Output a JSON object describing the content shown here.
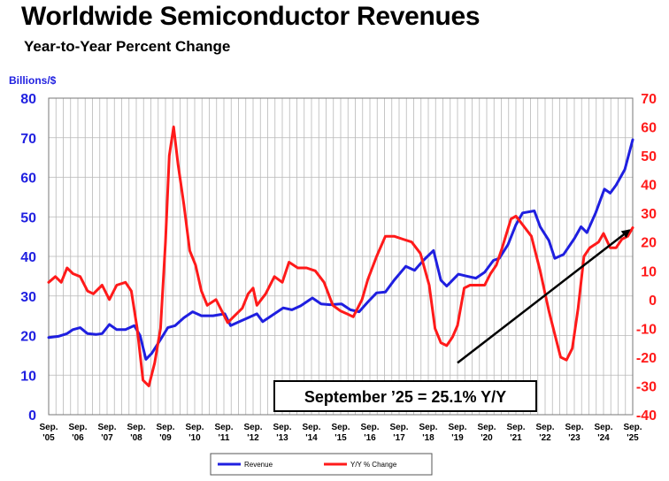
{
  "chart_data": {
    "type": "line",
    "title": "Worldwide Semiconductor Revenues",
    "subtitle": "Year-to-Year Percent Change",
    "ylabel_left": "Billions/$",
    "ylim_left": [
      0,
      80
    ],
    "yticks_left": [
      "0",
      "10",
      "20",
      "30",
      "40",
      "50",
      "60",
      "70",
      "80"
    ],
    "ylim_right": [
      -40,
      70
    ],
    "yticks_right": [
      "-40",
      "-30",
      "-20",
      "-10",
      "0",
      "10",
      "20",
      "30",
      "40",
      "50",
      "60",
      "70"
    ],
    "x_range": [
      2005.67,
      2025.67
    ],
    "x_ticks": [
      {
        "x": 2005.67,
        "top": "Sep.",
        "bottom": "'05"
      },
      {
        "x": 2006.67,
        "top": "Sep.",
        "bottom": "'06"
      },
      {
        "x": 2007.67,
        "top": "Sep.",
        "bottom": "'07"
      },
      {
        "x": 2008.67,
        "top": "Sep.",
        "bottom": "'08"
      },
      {
        "x": 2009.67,
        "top": "Sep.",
        "bottom": "'09"
      },
      {
        "x": 2010.67,
        "top": "Sep.",
        "bottom": "'10"
      },
      {
        "x": 2011.67,
        "top": "Sep.",
        "bottom": "'11"
      },
      {
        "x": 2012.67,
        "top": "Sep.",
        "bottom": "'12"
      },
      {
        "x": 2013.67,
        "top": "Sep.",
        "bottom": "'13"
      },
      {
        "x": 2014.67,
        "top": "Sep.",
        "bottom": "'14"
      },
      {
        "x": 2015.67,
        "top": "Sep.",
        "bottom": "'15"
      },
      {
        "x": 2016.67,
        "top": "Sep.",
        "bottom": "'16"
      },
      {
        "x": 2017.67,
        "top": "Sep.",
        "bottom": "'17"
      },
      {
        "x": 2018.67,
        "top": "Sep.",
        "bottom": "'18"
      },
      {
        "x": 2019.67,
        "top": "Sep.",
        "bottom": "'19"
      },
      {
        "x": 2020.67,
        "top": "Sep.",
        "bottom": "'20"
      },
      {
        "x": 2021.67,
        "top": "Sep.",
        "bottom": "'21"
      },
      {
        "x": 2022.67,
        "top": "Sep.",
        "bottom": "'22"
      },
      {
        "x": 2023.67,
        "top": "Sep.",
        "bottom": "'23"
      },
      {
        "x": 2024.67,
        "top": "Sep.",
        "bottom": "'24"
      },
      {
        "x": 2025.67,
        "top": "Sep.",
        "bottom": "'25"
      }
    ],
    "grid": true,
    "legend_position": "bottom-center",
    "series": [
      {
        "name": "Revenue",
        "axis": "left",
        "color": "#1f1fe0",
        "points": [
          [
            2005.67,
            19.5
          ],
          [
            2006.0,
            19.8
          ],
          [
            2006.3,
            20.5
          ],
          [
            2006.5,
            21.5
          ],
          [
            2006.75,
            22.0
          ],
          [
            2007.0,
            20.5
          ],
          [
            2007.3,
            20.3
          ],
          [
            2007.5,
            20.5
          ],
          [
            2007.75,
            22.8
          ],
          [
            2008.0,
            21.5
          ],
          [
            2008.3,
            21.5
          ],
          [
            2008.6,
            22.5
          ],
          [
            2008.8,
            20.0
          ],
          [
            2009.0,
            14.0
          ],
          [
            2009.2,
            15.5
          ],
          [
            2009.5,
            19.0
          ],
          [
            2009.75,
            22.0
          ],
          [
            2010.0,
            22.5
          ],
          [
            2010.3,
            24.5
          ],
          [
            2010.6,
            26.0
          ],
          [
            2010.9,
            25.0
          ],
          [
            2011.3,
            25.0
          ],
          [
            2011.7,
            25.5
          ],
          [
            2011.9,
            22.5
          ],
          [
            2012.2,
            23.5
          ],
          [
            2012.5,
            24.5
          ],
          [
            2012.8,
            25.5
          ],
          [
            2013.0,
            23.5
          ],
          [
            2013.3,
            25.0
          ],
          [
            2013.7,
            27.0
          ],
          [
            2014.0,
            26.5
          ],
          [
            2014.3,
            27.5
          ],
          [
            2014.7,
            29.5
          ],
          [
            2015.0,
            28.0
          ],
          [
            2015.3,
            27.8
          ],
          [
            2015.7,
            28.0
          ],
          [
            2016.0,
            26.5
          ],
          [
            2016.3,
            26.0
          ],
          [
            2016.6,
            28.5
          ],
          [
            2016.9,
            30.8
          ],
          [
            2017.2,
            31.0
          ],
          [
            2017.5,
            34.0
          ],
          [
            2017.9,
            37.5
          ],
          [
            2018.2,
            36.5
          ],
          [
            2018.5,
            39.0
          ],
          [
            2018.85,
            41.5
          ],
          [
            2019.1,
            34.0
          ],
          [
            2019.3,
            32.5
          ],
          [
            2019.7,
            35.5
          ],
          [
            2020.0,
            35.0
          ],
          [
            2020.3,
            34.5
          ],
          [
            2020.6,
            36.0
          ],
          [
            2020.9,
            39.0
          ],
          [
            2021.1,
            39.5
          ],
          [
            2021.4,
            43.0
          ],
          [
            2021.67,
            48.0
          ],
          [
            2021.9,
            51.0
          ],
          [
            2022.3,
            51.5
          ],
          [
            2022.5,
            47.5
          ],
          [
            2022.8,
            44.0
          ],
          [
            2023.0,
            39.5
          ],
          [
            2023.3,
            40.5
          ],
          [
            2023.67,
            44.5
          ],
          [
            2023.9,
            47.5
          ],
          [
            2024.1,
            46.0
          ],
          [
            2024.4,
            51.0
          ],
          [
            2024.7,
            57.0
          ],
          [
            2024.9,
            56.0
          ],
          [
            2025.1,
            58.0
          ],
          [
            2025.4,
            62.0
          ],
          [
            2025.67,
            69.5
          ]
        ]
      },
      {
        "name": "Y/Y % Change",
        "axis": "right",
        "color": "#ff1a1a",
        "points": [
          [
            2005.67,
            6
          ],
          [
            2005.9,
            8
          ],
          [
            2006.1,
            6
          ],
          [
            2006.3,
            11
          ],
          [
            2006.5,
            9
          ],
          [
            2006.75,
            8
          ],
          [
            2007.0,
            3
          ],
          [
            2007.2,
            2
          ],
          [
            2007.5,
            5
          ],
          [
            2007.75,
            0
          ],
          [
            2008.0,
            5
          ],
          [
            2008.3,
            6
          ],
          [
            2008.5,
            3
          ],
          [
            2008.7,
            -10
          ],
          [
            2008.9,
            -28
          ],
          [
            2009.1,
            -30
          ],
          [
            2009.3,
            -22
          ],
          [
            2009.5,
            -10
          ],
          [
            2009.67,
            20
          ],
          [
            2009.8,
            50
          ],
          [
            2009.95,
            60
          ],
          [
            2010.1,
            47
          ],
          [
            2010.3,
            33
          ],
          [
            2010.5,
            17
          ],
          [
            2010.7,
            12
          ],
          [
            2010.9,
            3
          ],
          [
            2011.1,
            -2
          ],
          [
            2011.4,
            0
          ],
          [
            2011.6,
            -4
          ],
          [
            2011.8,
            -8
          ],
          [
            2012.0,
            -6
          ],
          [
            2012.3,
            -3
          ],
          [
            2012.5,
            2
          ],
          [
            2012.67,
            4
          ],
          [
            2012.8,
            -2
          ],
          [
            2013.1,
            2
          ],
          [
            2013.4,
            8
          ],
          [
            2013.67,
            6
          ],
          [
            2013.9,
            13
          ],
          [
            2014.2,
            11
          ],
          [
            2014.5,
            11
          ],
          [
            2014.8,
            10
          ],
          [
            2015.1,
            6
          ],
          [
            2015.4,
            -2
          ],
          [
            2015.67,
            -4
          ],
          [
            2015.9,
            -5
          ],
          [
            2016.1,
            -6
          ],
          [
            2016.4,
            0
          ],
          [
            2016.6,
            7
          ],
          [
            2016.9,
            15
          ],
          [
            2017.2,
            22
          ],
          [
            2017.5,
            22
          ],
          [
            2017.8,
            21
          ],
          [
            2018.1,
            20
          ],
          [
            2018.4,
            16
          ],
          [
            2018.7,
            5
          ],
          [
            2018.9,
            -10
          ],
          [
            2019.1,
            -15
          ],
          [
            2019.3,
            -16
          ],
          [
            2019.5,
            -13
          ],
          [
            2019.67,
            -9
          ],
          [
            2019.9,
            4
          ],
          [
            2020.1,
            5
          ],
          [
            2020.3,
            5
          ],
          [
            2020.6,
            5
          ],
          [
            2020.8,
            9
          ],
          [
            2021.0,
            12
          ],
          [
            2021.2,
            18
          ],
          [
            2021.5,
            28
          ],
          [
            2021.67,
            29
          ],
          [
            2021.9,
            26
          ],
          [
            2022.2,
            22
          ],
          [
            2022.5,
            10
          ],
          [
            2022.8,
            -4
          ],
          [
            2023.0,
            -12
          ],
          [
            2023.2,
            -20
          ],
          [
            2023.4,
            -21
          ],
          [
            2023.6,
            -17
          ],
          [
            2023.8,
            -3
          ],
          [
            2024.0,
            15
          ],
          [
            2024.2,
            18
          ],
          [
            2024.5,
            20
          ],
          [
            2024.67,
            23
          ],
          [
            2024.9,
            18
          ],
          [
            2025.1,
            18
          ],
          [
            2025.3,
            21
          ],
          [
            2025.5,
            22
          ],
          [
            2025.67,
            25
          ]
        ]
      }
    ],
    "annotation": {
      "text": "September ’25 = 25.1% Y/Y",
      "arrow_from": [
        2019.67,
        -22
      ],
      "arrow_to": [
        2025.67,
        25
      ]
    }
  },
  "colors": {
    "revenue": "#1f1fe0",
    "yoy": "#ff1a1a",
    "left_axis_text": "#1f1fe0",
    "right_axis_text": "#ff1a1a",
    "grid": "#b8b8b8"
  }
}
